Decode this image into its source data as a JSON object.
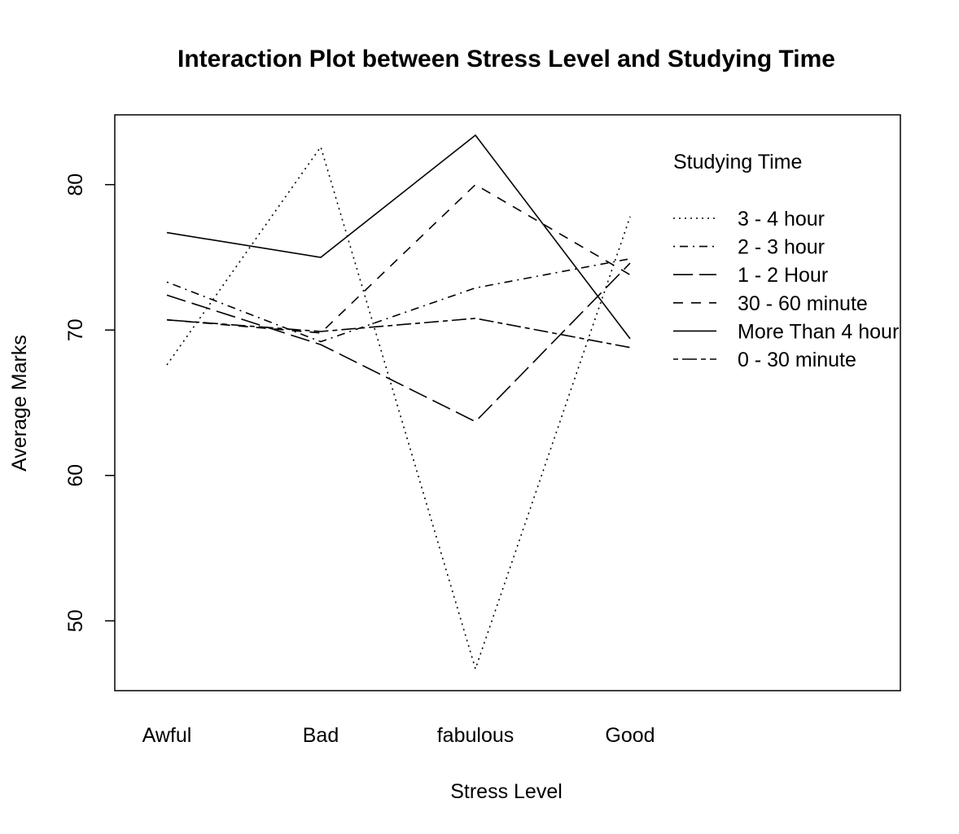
{
  "chart_data": {
    "type": "line",
    "title": "Interaction Plot between Stress Level and Studying Time",
    "xlabel": "Stress Level",
    "ylabel": "Average Marks",
    "categories": [
      "Awful",
      "Bad",
      "fabulous",
      "Good"
    ],
    "ylim": [
      45.2,
      84.8
    ],
    "yticks": [
      50,
      60,
      70,
      80
    ],
    "grid": false,
    "legend": {
      "title": "Studying Time",
      "placement": "top-right"
    },
    "series": [
      {
        "name": "3 - 4 hour",
        "linetype": "dotted",
        "values": [
          67.6,
          82.6,
          46.7,
          77.8
        ]
      },
      {
        "name": "2 - 3 hour",
        "linetype": "dotdash",
        "values": [
          73.3,
          69.2,
          72.9,
          74.9
        ]
      },
      {
        "name": "1 - 2 Hour",
        "linetype": "longdash",
        "values": [
          72.4,
          69.0,
          63.7,
          74.6
        ]
      },
      {
        "name": "30 - 60 minute",
        "linetype": "dashed",
        "values": [
          70.7,
          69.8,
          80.0,
          73.8
        ]
      },
      {
        "name": "More Than 4 hour",
        "linetype": "solid",
        "values": [
          76.7,
          75.0,
          83.4,
          69.4
        ]
      },
      {
        "name": "0 - 30 minute",
        "linetype": "twodash",
        "values": [
          70.7,
          69.9,
          70.8,
          68.8
        ]
      }
    ]
  }
}
